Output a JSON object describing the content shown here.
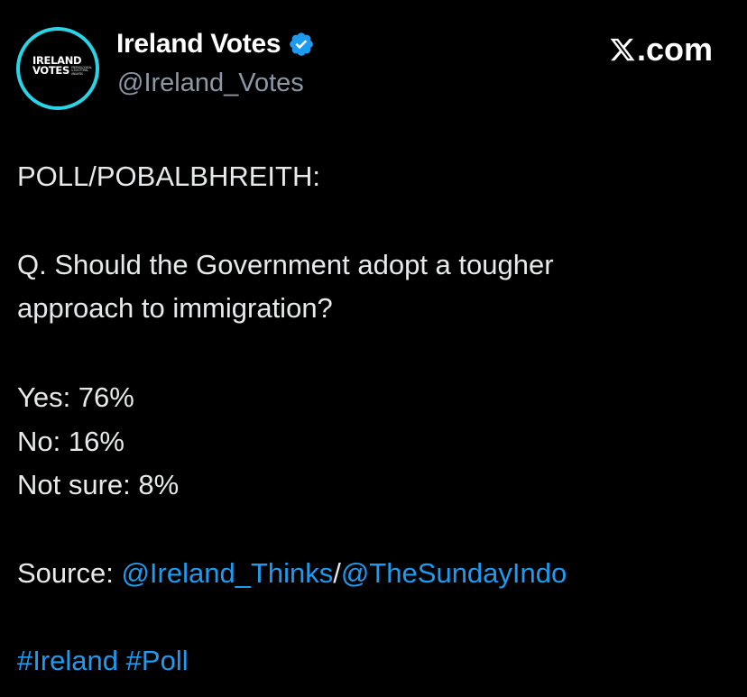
{
  "tweet": {
    "author": {
      "display_name": "Ireland Votes",
      "handle": "@Ireland_Votes",
      "verified": true,
      "avatar": {
        "line1": "IRELAND",
        "line2": "VOTES",
        "sub": "PSEPHOLOGICAL & ELECTORAL ANALYSIS",
        "ring_color": "#2bd3e6"
      }
    },
    "brand": {
      "icon": "x-logo-icon",
      "suffix": ".com"
    },
    "lines": {
      "heading": "POLL/POBALBHREITH:",
      "question_1": "Q. Should the Government adopt a tougher",
      "question_2": "approach to immigration?",
      "result_yes": "Yes: 76%",
      "result_no": "No: 16%",
      "result_unsure": "Not sure: 8%"
    },
    "source": {
      "label": "Source: ",
      "mention_1": "@Ireland_Thinks",
      "separator": "/",
      "mention_2": "@TheSundayIndo"
    },
    "hashtags": [
      "#Ireland",
      "#Poll"
    ]
  },
  "colors": {
    "background": "#000000",
    "text": "#e7e9ea",
    "secondary": "#8b98a5",
    "link": "#1d9bf0"
  }
}
